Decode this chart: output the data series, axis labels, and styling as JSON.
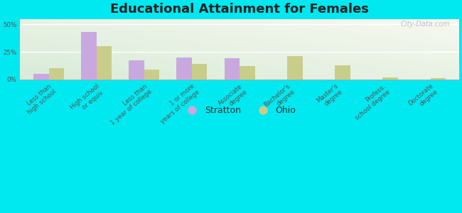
{
  "title": "Educational Attainment for Females",
  "categories": [
    "Less than\nhigh school",
    "High school\nor equiv.",
    "Less than\n1 year of college",
    "1 or more\nyears of college",
    "Associate\ndegree",
    "Bachelor's\ndegree",
    "Master's\ndegree",
    "Profess.\nschool degree",
    "Doctorate\ndegree"
  ],
  "stratton_values": [
    5,
    43,
    17,
    20,
    19,
    0,
    0,
    0,
    0
  ],
  "ohio_values": [
    10,
    30,
    9,
    14,
    12,
    21,
    13,
    2,
    1
  ],
  "stratton_color": "#c9a8e0",
  "ohio_color": "#c8ce8a",
  "background_outer": "#00e8f0",
  "background_plot_top": "#f5f5f0",
  "background_plot_bottom": "#d8ecd8",
  "ylim": [
    0,
    55
  ],
  "yticks": [
    0,
    25,
    50
  ],
  "ytick_labels": [
    "0%",
    "25%",
    "50%"
  ],
  "legend_labels": [
    "Stratton",
    "Ohio"
  ],
  "title_fontsize": 13,
  "tick_fontsize": 6.2,
  "bar_width": 0.32
}
